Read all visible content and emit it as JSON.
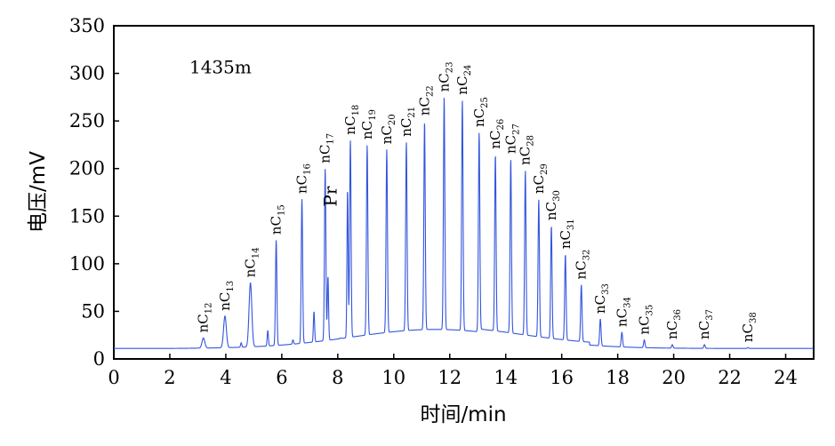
{
  "chart_data": {
    "type": "line",
    "xlabel": "时间/min",
    "ylabel": "电压/mV",
    "xlim": [
      0,
      25
    ],
    "ylim": [
      0,
      350
    ],
    "xticks": [
      0,
      2,
      4,
      6,
      8,
      10,
      12,
      14,
      16,
      18,
      20,
      22,
      24
    ],
    "yticks": [
      0,
      50,
      100,
      150,
      200,
      250,
      300,
      350
    ],
    "grid": false,
    "line_color": "#3355dd",
    "annotations": [
      {
        "text": "1435m",
        "x": 2.7,
        "y": 300
      },
      {
        "text": "Pr",
        "x": 7.95,
        "y": 160
      }
    ],
    "peaks": [
      {
        "label": "nC12",
        "prefix": "nC",
        "sub": "12",
        "x": 3.2,
        "y": 22
      },
      {
        "label": "nC13",
        "prefix": "nC",
        "sub": "13",
        "x": 3.97,
        "y": 45
      },
      {
        "label": "nC14",
        "prefix": "nC",
        "sub": "14",
        "x": 4.88,
        "y": 80
      },
      {
        "label": "nC15",
        "prefix": "nC",
        "sub": "15",
        "x": 5.8,
        "y": 125
      },
      {
        "label": "nC16",
        "prefix": "nC",
        "sub": "16",
        "x": 6.72,
        "y": 168
      },
      {
        "label": "nC17",
        "prefix": "nC",
        "sub": "17",
        "x": 7.55,
        "y": 200
      },
      {
        "label": "nC18",
        "prefix": "nC",
        "sub": "18",
        "x": 8.45,
        "y": 230
      },
      {
        "label": "nC19",
        "prefix": "nC",
        "sub": "19",
        "x": 9.05,
        "y": 225
      },
      {
        "label": "nC20",
        "prefix": "nC",
        "sub": "20",
        "x": 9.75,
        "y": 220
      },
      {
        "label": "nC21",
        "prefix": "nC",
        "sub": "21",
        "x": 10.45,
        "y": 228
      },
      {
        "label": "nC22",
        "prefix": "nC",
        "sub": "22",
        "x": 11.1,
        "y": 250
      },
      {
        "label": "nC23",
        "prefix": "nC",
        "sub": "23",
        "x": 11.8,
        "y": 275
      },
      {
        "label": "nC24",
        "prefix": "nC",
        "sub": "24",
        "x": 12.45,
        "y": 272
      },
      {
        "label": "nC25",
        "prefix": "nC",
        "sub": "25",
        "x": 13.05,
        "y": 238
      },
      {
        "label": "nC26",
        "prefix": "nC",
        "sub": "26",
        "x": 13.63,
        "y": 215
      },
      {
        "label": "nC27",
        "prefix": "nC",
        "sub": "27",
        "x": 14.18,
        "y": 210
      },
      {
        "label": "nC28",
        "prefix": "nC",
        "sub": "28",
        "x": 14.7,
        "y": 198
      },
      {
        "label": "nC29",
        "prefix": "nC",
        "sub": "29",
        "x": 15.18,
        "y": 168
      },
      {
        "label": "nC30",
        "prefix": "nC",
        "sub": "30",
        "x": 15.63,
        "y": 140
      },
      {
        "label": "nC31",
        "prefix": "nC",
        "sub": "31",
        "x": 16.13,
        "y": 110
      },
      {
        "label": "nC32",
        "prefix": "nC",
        "sub": "32",
        "x": 16.7,
        "y": 78
      },
      {
        "label": "nC33",
        "prefix": "nC",
        "sub": "33",
        "x": 17.38,
        "y": 42
      },
      {
        "label": "nC34",
        "prefix": "nC",
        "sub": "34",
        "x": 18.15,
        "y": 28
      },
      {
        "label": "nC35",
        "prefix": "nC",
        "sub": "35",
        "x": 18.95,
        "y": 20
      },
      {
        "label": "nC36",
        "prefix": "nC",
        "sub": "36",
        "x": 19.95,
        "y": 15
      },
      {
        "label": "nC37",
        "prefix": "nC",
        "sub": "37",
        "x": 21.1,
        "y": 15
      },
      {
        "label": "nC38",
        "prefix": "nC",
        "sub": "38",
        "x": 22.65,
        "y": 12
      }
    ],
    "minor_peaks": [
      {
        "x": 4.55,
        "y": 17
      },
      {
        "x": 5.5,
        "y": 30
      },
      {
        "x": 6.4,
        "y": 20
      },
      {
        "x": 7.15,
        "y": 50
      },
      {
        "x": 7.65,
        "y": 87
      },
      {
        "x": 8.1,
        "y": 22
      },
      {
        "x": 8.35,
        "y": 178
      },
      {
        "x": 8.85,
        "y": 18
      },
      {
        "x": 9.5,
        "y": 16
      },
      {
        "x": 10.8,
        "y": 10
      },
      {
        "x": 11.45,
        "y": 14
      },
      {
        "x": 12.1,
        "y": 12
      },
      {
        "x": 12.75,
        "y": 12
      },
      {
        "x": 13.35,
        "y": 14
      },
      {
        "x": 13.9,
        "y": 16
      },
      {
        "x": 14.45,
        "y": 18
      },
      {
        "x": 14.95,
        "y": 20
      },
      {
        "x": 15.4,
        "y": 18
      },
      {
        "x": 15.9,
        "y": 14
      },
      {
        "x": 16.4,
        "y": 10
      },
      {
        "x": 17.0,
        "y": 6
      }
    ]
  }
}
